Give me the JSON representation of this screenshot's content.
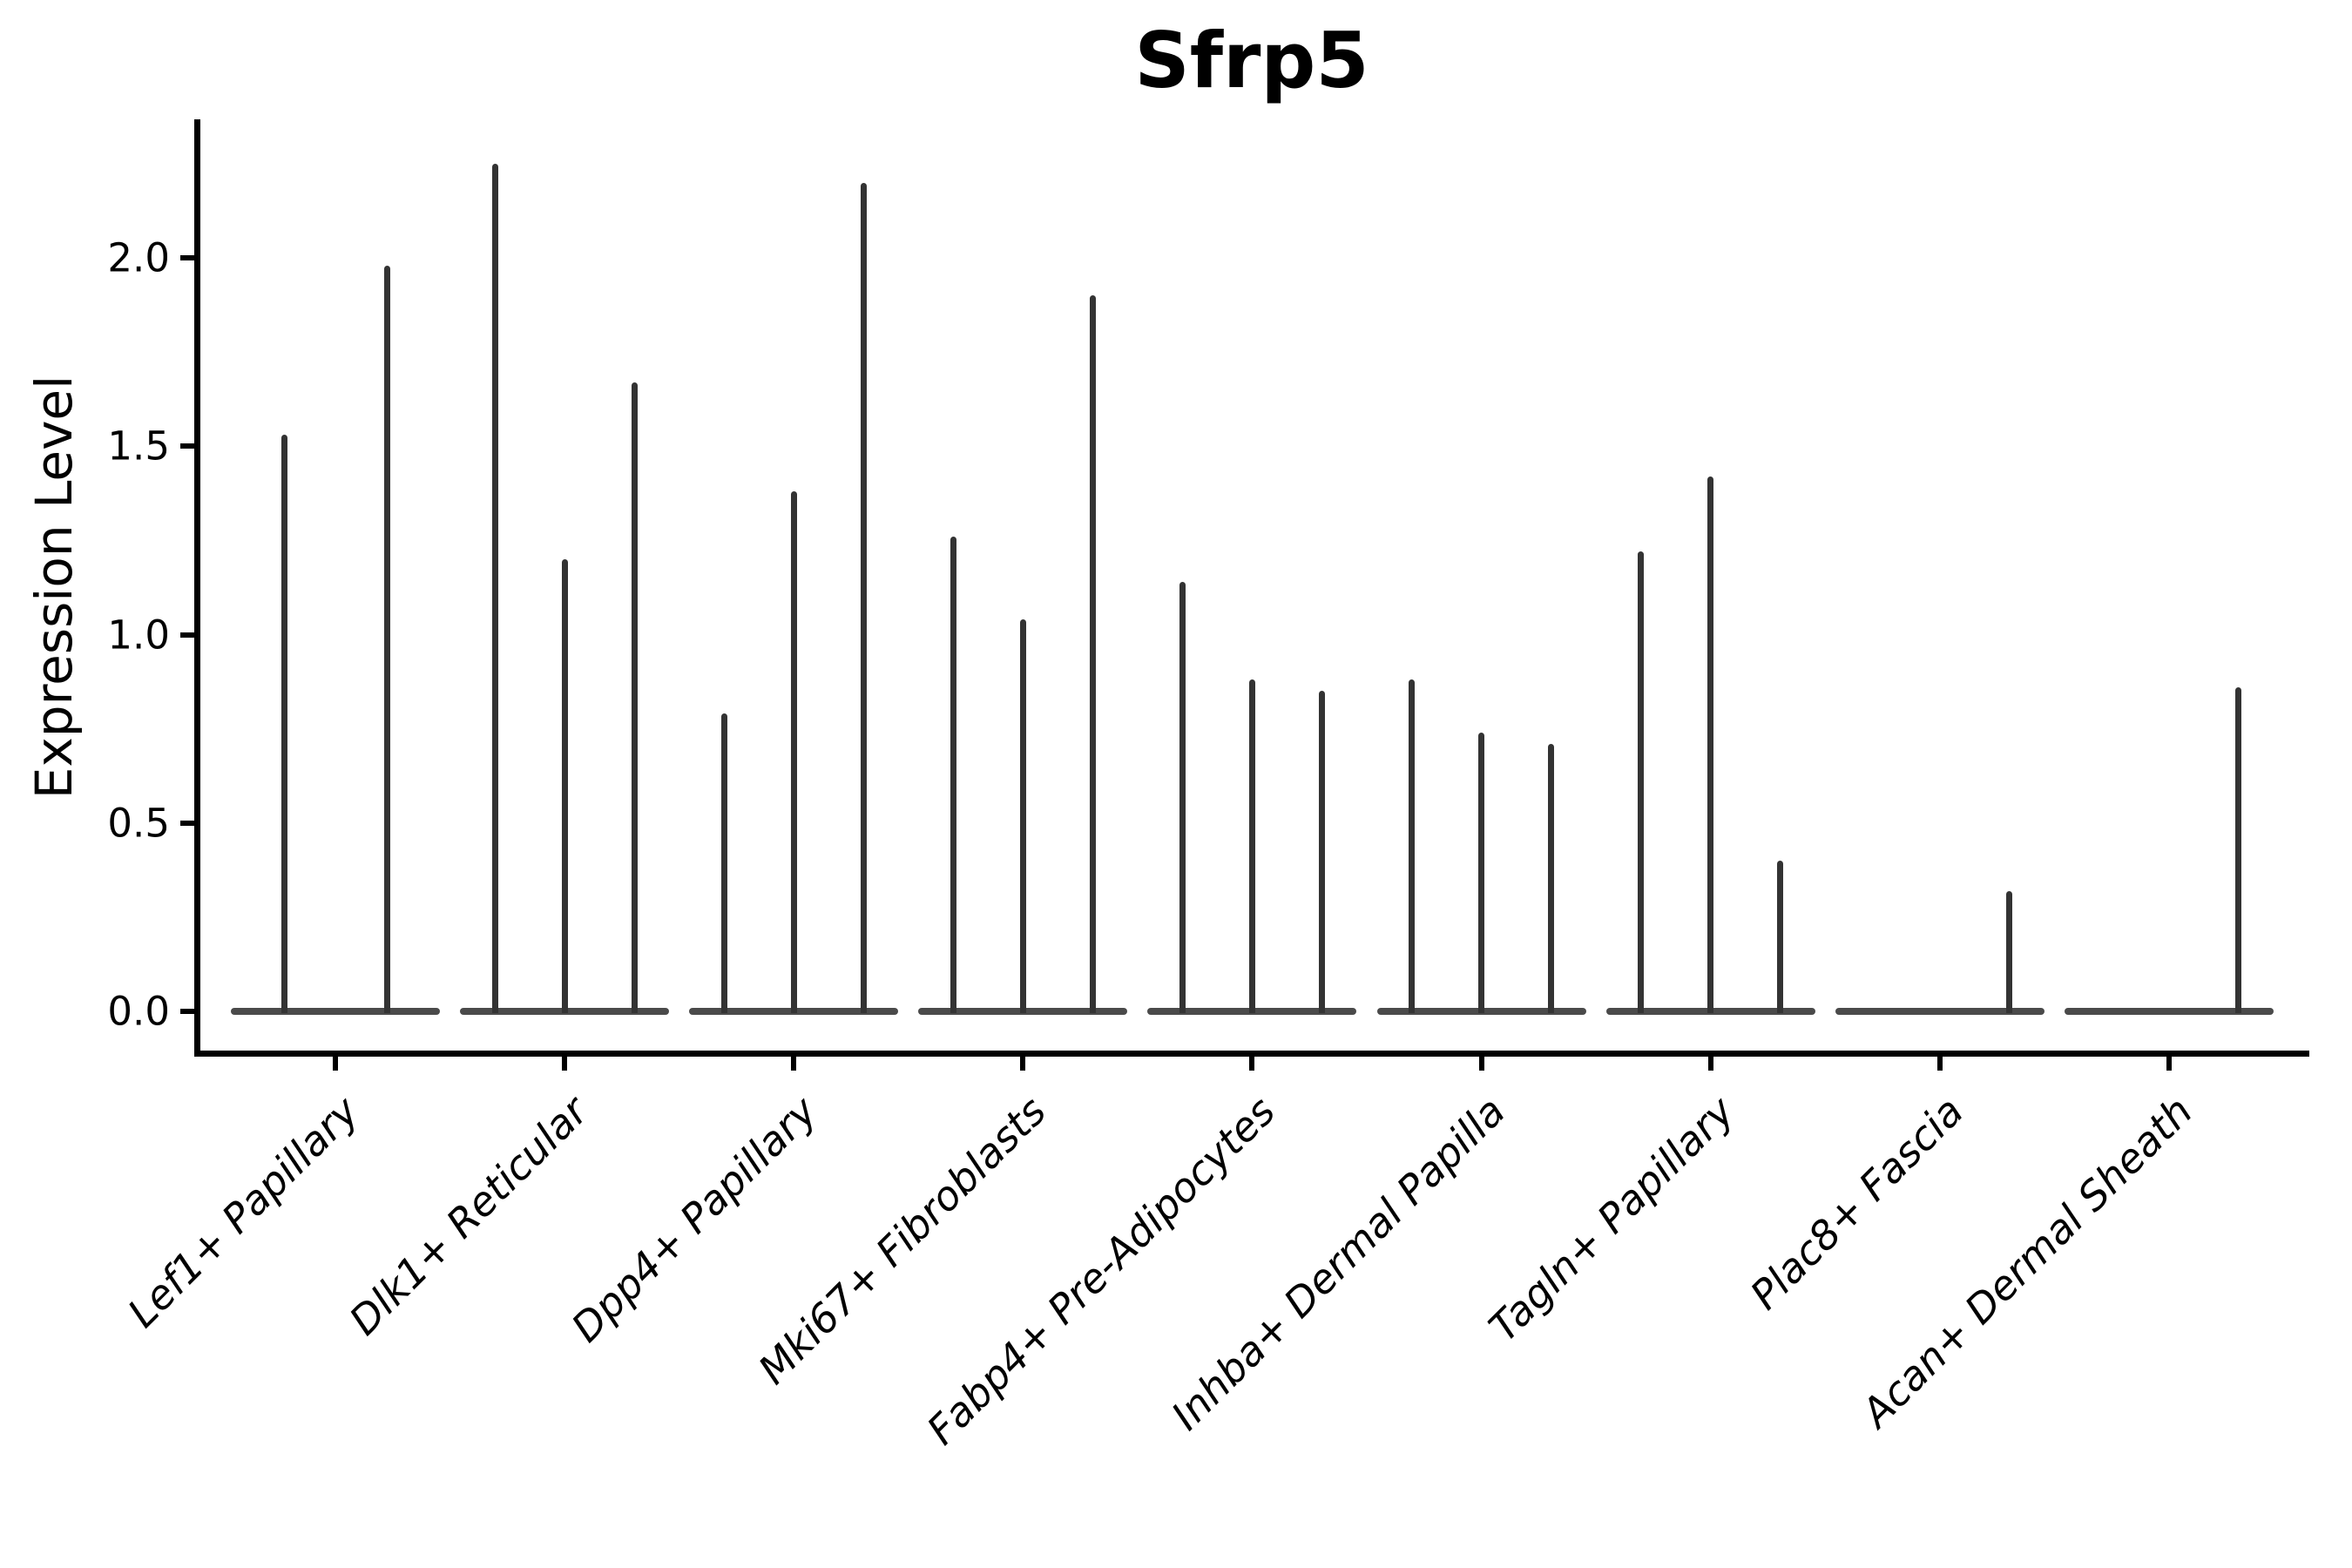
{
  "title": "Sfrp5",
  "axes": {
    "ylabel": "Expression Level",
    "ytick_labels": [
      "0.0",
      "0.5",
      "1.0",
      "1.5",
      "2.0"
    ]
  },
  "chart_data": {
    "type": "violin",
    "title": "Sfrp5",
    "xlabel": "",
    "ylabel": "Expression Level",
    "ylim": [
      -0.11,
      2.36
    ],
    "yticks": [
      0.0,
      0.5,
      1.0,
      1.5,
      2.0
    ],
    "grid": false,
    "legend": "none",
    "description": "Single-cell expression violin plot; each category holds narrow spike-shaped violins (most cells at 0) whose peaks reach the listed maximum expression values. Categories 8 and 9 have expression only in their rightmost violin; category 1 has two violins.",
    "categories": [
      "Lef1+ Papillary",
      "Dlk1+ Reticular",
      "Dpp4+ Papillary",
      "Mki67+ Fibroblasts",
      "Fabp4+ Pre-Adipocytes",
      "Inhba+ Dermal Papilla",
      "Tagln+ Papillary",
      "Plac8+ Fascia",
      "Acan+ Dermal Sheath"
    ],
    "series": [
      {
        "category": "Lef1+ Papillary",
        "n_violins": 2,
        "peak_expression": [
          1.53,
          1.98
        ]
      },
      {
        "category": "Dlk1+ Reticular",
        "n_violins": 3,
        "peak_expression": [
          2.25,
          1.2,
          1.67
        ]
      },
      {
        "category": "Dpp4+ Papillary",
        "n_violins": 3,
        "peak_expression": [
          0.79,
          1.38,
          2.2
        ]
      },
      {
        "category": "Mki67+ Fibroblasts",
        "n_violins": 3,
        "peak_expression": [
          1.26,
          1.04,
          1.9
        ]
      },
      {
        "category": "Fabp4+ Pre-Adipocytes",
        "n_violins": 3,
        "peak_expression": [
          1.14,
          0.88,
          0.85
        ]
      },
      {
        "category": "Inhba+ Dermal Papilla",
        "n_violins": 3,
        "peak_expression": [
          0.88,
          0.74,
          0.71
        ]
      },
      {
        "category": "Tagln+ Papillary",
        "n_violins": 3,
        "peak_expression": [
          1.22,
          1.42,
          0.4
        ]
      },
      {
        "category": "Plac8+ Fascia",
        "n_violins": 3,
        "peak_expression": [
          0.0,
          0.0,
          0.32
        ]
      },
      {
        "category": "Acan+ Dermal Sheath",
        "n_violins": 3,
        "peak_expression": [
          0.0,
          0.0,
          0.86
        ]
      }
    ],
    "style": {
      "violin_color": "#333333",
      "baseline_color": "#4a4a4a",
      "spine_color": "#000000",
      "background": "#ffffff"
    }
  }
}
